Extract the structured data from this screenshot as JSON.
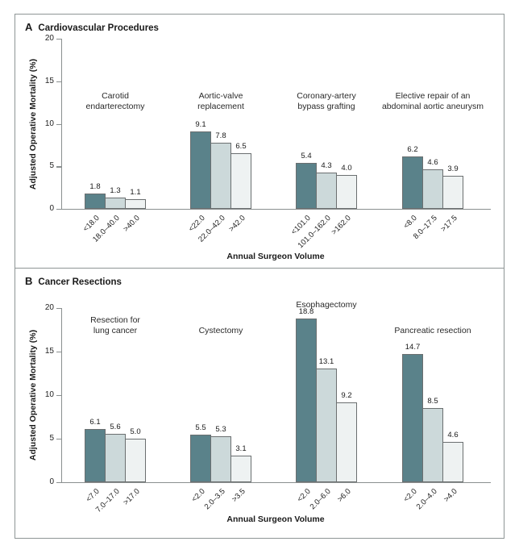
{
  "figure": {
    "xlabel": "Annual Surgeon Volume",
    "ylabel": "Adjusted Operative Mortality (%)",
    "colors": {
      "bar_low_volume": "#5a828a",
      "bar_mid_volume": "#ccd9da",
      "bar_high_volume": "#eef2f2",
      "axis": "#8a8f8f",
      "border": "#8e9595"
    }
  },
  "chart_data": [
    {
      "type": "bar",
      "panel_letter": "A",
      "title": "Cardiovascular Procedures",
      "ylabel": "Adjusted Operative Mortality (%)",
      "xlabel": "Annual Surgeon Volume",
      "ylim": [
        0,
        20
      ],
      "yticks": [
        0,
        5,
        10,
        15,
        20
      ],
      "grid": false,
      "legend": "none",
      "bar_colors": [
        "#5a828a",
        "#ccd9da",
        "#eef2f2"
      ],
      "groups": [
        {
          "label": "Carotid endarterectomy",
          "label_lines": [
            "Carotid",
            "endarterectomy"
          ],
          "categories": [
            "<18.0",
            "18.0–40.0",
            ">40.0"
          ],
          "values": [
            1.8,
            1.3,
            1.1
          ]
        },
        {
          "label": "Aortic-valve replacement",
          "label_lines": [
            "Aortic-valve",
            "replacement"
          ],
          "categories": [
            "<22.0",
            "22.0–42.0",
            ">42.0"
          ],
          "values": [
            9.1,
            7.8,
            6.5
          ]
        },
        {
          "label": "Coronary-artery bypass grafting",
          "label_lines": [
            "Coronary-artery",
            "bypass grafting"
          ],
          "categories": [
            "<101.0",
            "101.0–162.0",
            ">162.0"
          ],
          "values": [
            5.4,
            4.3,
            4.0
          ]
        },
        {
          "label": "Elective repair of an abdominal aortic aneurysm",
          "label_lines": [
            "Elective repair of an",
            "abdominal aortic aneurysm"
          ],
          "categories": [
            "<8.0",
            "8.0–17.5",
            ">17.5"
          ],
          "values": [
            6.2,
            4.6,
            3.9
          ]
        }
      ],
      "layout": {
        "plot_top": 30,
        "baseline": 241,
        "label_tops": [
          95,
          95,
          95,
          95
        ],
        "xlabel_top": 294,
        "ylabel_center": 136
      }
    },
    {
      "type": "bar",
      "panel_letter": "B",
      "title": "Cancer Resections",
      "ylabel": "Adjusted Operative Mortality (%)",
      "xlabel": "Annual Surgeon Volume",
      "ylim": [
        0,
        20
      ],
      "yticks": [
        0,
        5,
        10,
        15,
        20
      ],
      "grid": false,
      "legend": "none",
      "bar_colors": [
        "#5a828a",
        "#ccd9da",
        "#eef2f2"
      ],
      "groups": [
        {
          "label": "Resection for lung cancer",
          "label_lines": [
            "Resection for",
            "lung cancer"
          ],
          "categories": [
            "<7.0",
            "7.0–17.0",
            ">17.0"
          ],
          "values": [
            6.1,
            5.6,
            5.0
          ]
        },
        {
          "label": "Cystectomy",
          "label_lines": [
            "Cystectomy"
          ],
          "categories": [
            "<2.0",
            "2.0–3.5",
            ">3.5"
          ],
          "values": [
            5.5,
            5.3,
            3.1
          ]
        },
        {
          "label": "Esophagectomy",
          "label_lines": [
            "Esophagectomy"
          ],
          "categories": [
            "<2.0",
            "2.0–6.0",
            ">6.0"
          ],
          "values": [
            18.8,
            13.1,
            9.2
          ]
        },
        {
          "label": "Pancreatic resection",
          "label_lines": [
            "Pancreatic resection"
          ],
          "categories": [
            "<2.0",
            "2.0–4.0",
            ">4.0"
          ],
          "values": [
            14.7,
            8.5,
            4.6
          ]
        }
      ],
      "layout": {
        "plot_top": 49,
        "baseline": 265,
        "label_tops": [
          58,
          71,
          39,
          71
        ],
        "xlabel_top": 305,
        "ylabel_center": 157
      }
    }
  ]
}
